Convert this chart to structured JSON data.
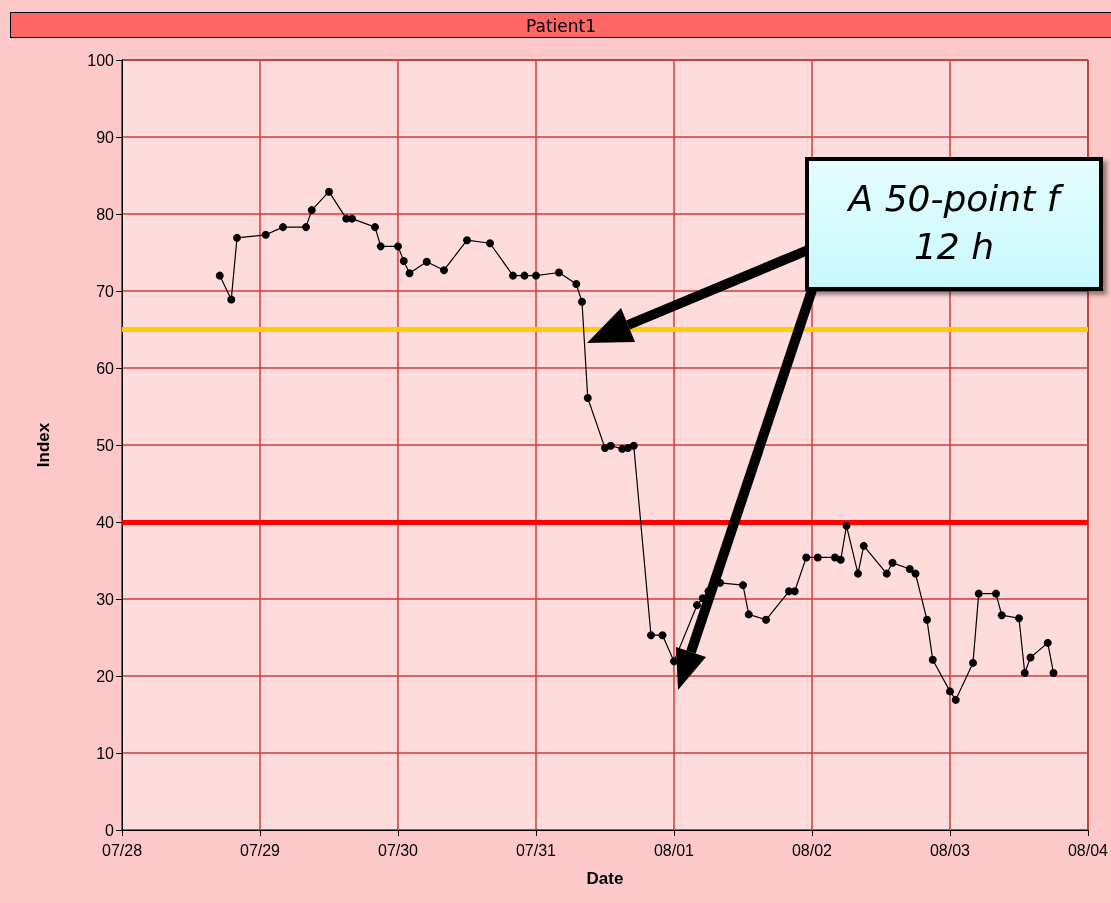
{
  "chart_data": {
    "type": "line",
    "title": "Patient1",
    "xlabel": "Date",
    "ylabel": "Index",
    "x": [
      "--07-28T17:00",
      "--07-28T19:00",
      "--07-28T20:00",
      "--07-29T01:00",
      "--07-29T04:00",
      "--07-29T08:00",
      "--07-29T09:00",
      "--07-29T12:00",
      "--07-29T15:00",
      "--07-29T16:00",
      "--07-29T20:00",
      "--07-29T21:00",
      "--07-30T00:00",
      "--07-30T01:00",
      "--07-30T02:00",
      "--07-30T05:00",
      "--07-30T08:00",
      "--07-30T12:00",
      "--07-30T16:00",
      "--07-30T20:00",
      "--07-30T22:00",
      "--07-31T00:00",
      "--07-31T04:00",
      "--07-31T07:00",
      "--07-31T08:00",
      "--07-31T09:00",
      "--07-31T12:00",
      "--07-31T13:00",
      "--07-31T15:00",
      "--07-31T16:00",
      "--07-31T17:00",
      "--07-31T20:00",
      "--07-31T22:00",
      "--08-01T00:00",
      "--08-01T04:00",
      "--08-01T05:00",
      "--08-01T06:00",
      "--08-01T08:00",
      "--08-01T12:00",
      "--08-01T13:00",
      "--08-01T16:00",
      "--08-01T20:00",
      "--08-01T21:00",
      "--08-01T23:00",
      "--08-02T01:00",
      "--08-02T04:00",
      "--08-02T05:00",
      "--08-02T06:00",
      "--08-02T08:00",
      "--08-02T09:00",
      "--08-02T13:00",
      "--08-02T14:00",
      "--08-02T17:00",
      "--08-02T18:00",
      "--08-02T20:00",
      "--08-02T21:00",
      "--08-03T00:00",
      "--08-03T01:00",
      "--08-03T04:00",
      "--08-03T05:00",
      "--08-03T08:00",
      "--08-03T09:00",
      "--08-03T12:00",
      "--08-03T13:00",
      "--08-03T14:00",
      "--08-03T17:00",
      "--08-03T18:00"
    ],
    "series": [
      {
        "color": "#000000",
        "values": [
          72,
          68.9,
          76.9,
          77.3,
          78.3,
          78.3,
          80.5,
          82.9,
          79.4,
          79.4,
          78.3,
          75.8,
          75.8,
          73.9,
          72.3,
          73.8,
          72.7,
          76.6,
          76.2,
          72,
          72,
          72,
          72.4,
          70.9,
          68.6,
          56.1,
          49.6,
          49.9,
          49.5,
          49.6,
          49.9,
          25.3,
          25.3,
          21.9,
          29.2,
          30.1,
          31,
          32.1,
          31.8,
          28,
          27.3,
          31,
          31,
          35.4,
          35.4,
          35.4,
          35.1,
          39.5,
          33.3,
          36.9,
          33.3,
          34.7,
          33.9,
          33.3,
          27.3,
          22.1,
          18,
          16.9,
          21.7,
          30.7,
          30.7,
          27.9,
          27.5,
          20.4,
          22.4,
          24.3,
          20.4
        ]
      }
    ],
    "xlim": [
      "--07-28",
      "--08-04"
    ],
    "xticks": [
      {
        "value": "--07-28",
        "label": "07/28"
      },
      {
        "value": "--07-29",
        "label": "07/29"
      },
      {
        "value": "--07-30",
        "label": "07/30"
      },
      {
        "value": "--07-31",
        "label": "07/31"
      },
      {
        "value": "--08-01",
        "label": "08/01"
      },
      {
        "value": "--08-02",
        "label": "08/02"
      },
      {
        "value": "--08-03",
        "label": "08/03"
      },
      {
        "value": "--08-04",
        "label": "08/04"
      }
    ],
    "ylim": [
      0,
      100
    ],
    "yticks": [
      0,
      10,
      20,
      30,
      40,
      50,
      60,
      70,
      80,
      90,
      100
    ],
    "ref_lines": [
      {
        "axis": "y",
        "value": 65,
        "color": "#ffcc00"
      },
      {
        "axis": "y",
        "value": 40,
        "color": "#ff0000"
      }
    ],
    "annotations": [
      "A 50-point f\n12 h"
    ],
    "grid": true,
    "marker": "circle",
    "line_style": "solid"
  }
}
